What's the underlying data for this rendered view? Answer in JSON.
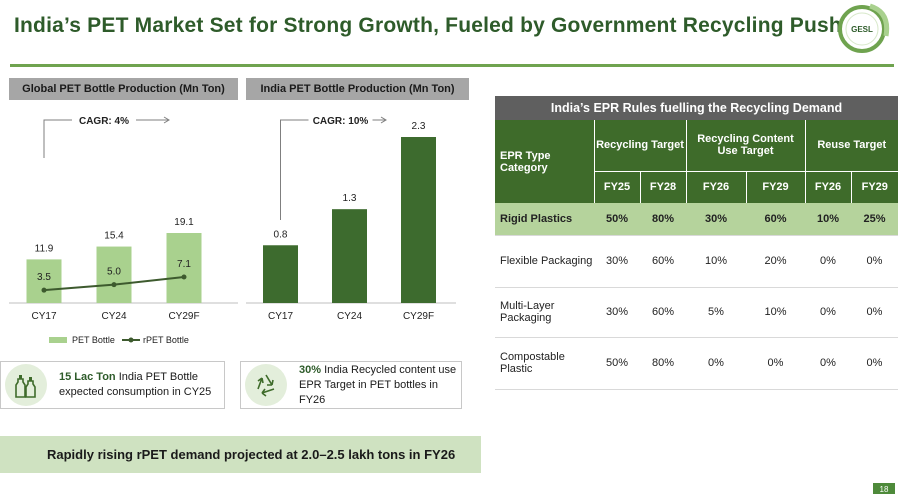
{
  "title": "India’s PET Market Set for Strong Growth, Fueled by Government Recycling Push",
  "logo_text": "GESL",
  "colors": {
    "brand_dark": "#2e5b2a",
    "light_bar": "#a9d18e",
    "dark_bar": "#3d6b2e",
    "line": "#3d5a2e"
  },
  "chart_data": [
    {
      "type": "bar",
      "title": "Global PET Bottle Production (Mn Ton)",
      "categories": [
        "CY17",
        "CY24",
        "CY29F"
      ],
      "series": [
        {
          "name": "PET Bottle",
          "type": "bar",
          "values": [
            11.9,
            15.4,
            19.1
          ],
          "labels": [
            "11.9",
            "15.4",
            "19.1"
          ]
        },
        {
          "name": "rPET Bottle",
          "type": "line",
          "values": [
            3.5,
            5.0,
            7.1
          ],
          "labels": [
            "3.5",
            "5.0",
            "7.1"
          ]
        }
      ],
      "cagr": "CAGR: 4%",
      "legend": [
        {
          "name": "PET Bottle"
        },
        {
          "name": "rPET Bottle"
        }
      ],
      "ylim": [
        0,
        22
      ]
    },
    {
      "type": "bar",
      "title": "India PET Bottle Production (Mn Ton)",
      "categories": [
        "CY17",
        "CY24",
        "CY29F"
      ],
      "series": [
        {
          "name": "India PET Bottle",
          "type": "bar",
          "values": [
            0.8,
            1.3,
            2.3
          ],
          "labels": [
            "0.8",
            "1.3",
            "2.3"
          ]
        }
      ],
      "cagr": "CAGR: 10%",
      "ylim": [
        0,
        2.7
      ]
    }
  ],
  "info_boxes": [
    {
      "highlight": "15 Lac Ton",
      "text_line1_rest": " India PET Bottle",
      "text_line2": "expected consumption in CY25",
      "icon": "bottles-icon"
    },
    {
      "highlight": "30%",
      "text_line1_rest": " India Recycled content use",
      "text_line2": "EPR Target in PET bottles in FY26",
      "icon": "recycle-icon"
    }
  ],
  "banner": "Rapidly rising rPET demand projected at 2.0–2.5 lakh tons in FY26",
  "table": {
    "title": "India’s EPR Rules fuelling the Recycling Demand",
    "category_header": "EPR Type Category",
    "groups": [
      "Recycling Target",
      "Recycling Content Use Target",
      "Reuse Target"
    ],
    "years": [
      "FY25",
      "FY28",
      "FY26",
      "FY29",
      "FY26",
      "FY29"
    ],
    "rows": [
      {
        "name": "Rigid Plastics",
        "values": [
          "50%",
          "80%",
          "30%",
          "60%",
          "10%",
          "25%"
        ]
      },
      {
        "name": "Flexible Packaging",
        "values": [
          "30%",
          "60%",
          "10%",
          "20%",
          "0%",
          "0%"
        ]
      },
      {
        "name": "Multi-Layer Packaging",
        "values": [
          "30%",
          "60%",
          "5%",
          "10%",
          "0%",
          "0%"
        ]
      },
      {
        "name": "Compostable Plastic",
        "values": [
          "50%",
          "80%",
          "0%",
          "0%",
          "0%",
          "0%"
        ]
      }
    ]
  },
  "page_number": "18"
}
